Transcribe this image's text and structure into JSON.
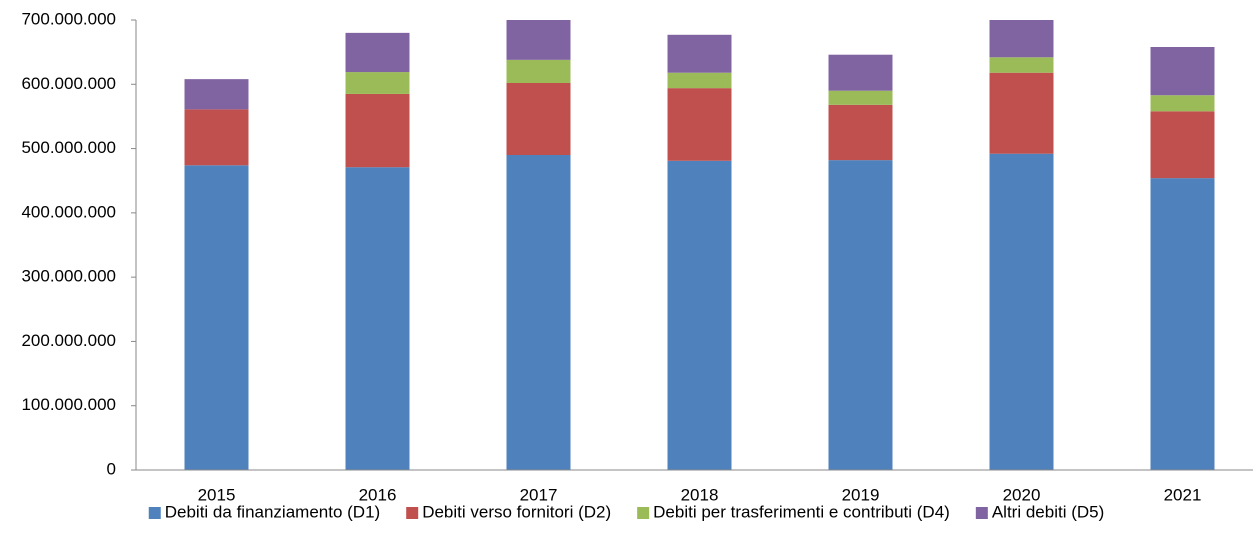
{
  "chart_data": {
    "type": "stacked_bar",
    "categories": [
      "2015",
      "2016",
      "2017",
      "2018",
      "2019",
      "2020",
      "2021"
    ],
    "series": [
      {
        "name": "Debiti da finanziamento (D1)",
        "color": "#4f81bd",
        "values": [
          474000000,
          471000000,
          490000000,
          481000000,
          482000000,
          492000000,
          454000000
        ]
      },
      {
        "name": "Debiti verso fornitori (D2)",
        "color": "#c0504d",
        "values": [
          87000000,
          114000000,
          112000000,
          113000000,
          86000000,
          126000000,
          104000000
        ]
      },
      {
        "name": "Debiti per trasferimenti e contributi (D4)",
        "color": "#9bbb59",
        "values": [
          0,
          34000000,
          36000000,
          24000000,
          22000000,
          24000000,
          25000000
        ]
      },
      {
        "name": "Altri debiti (D5)",
        "color": "#8064a2",
        "values": [
          47000000,
          61000000,
          62000000,
          59000000,
          56000000,
          58000000,
          75000000
        ]
      }
    ],
    "ylim": [
      0,
      700000000
    ],
    "yticks": [
      0,
      {
        "value": 100000000,
        "label": "100.000.000"
      },
      {
        "value": 200000000,
        "label": "200.000.000"
      },
      {
        "value": 300000000,
        "label": "300.000.000"
      },
      {
        "value": 400000000,
        "label": "400.000.000"
      },
      {
        "value": 500000000,
        "label": "500.000.000"
      },
      {
        "value": 600000000,
        "label": "600.000.000"
      },
      {
        "value": 700000000,
        "label": "700.000.000"
      }
    ],
    "grid": false,
    "legend": "bottom"
  }
}
